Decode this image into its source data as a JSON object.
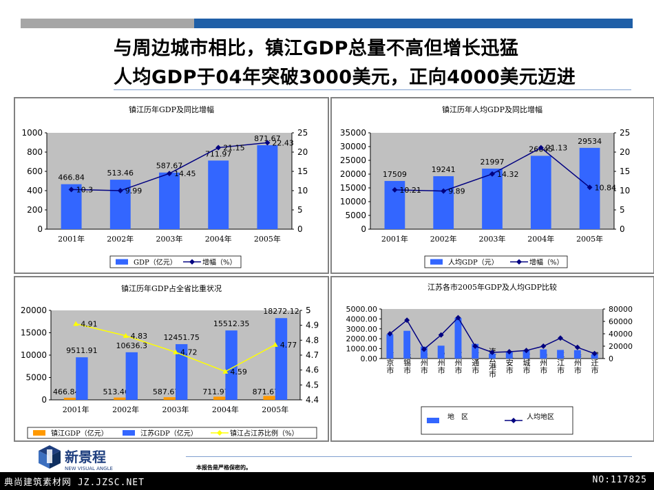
{
  "slide": {
    "title_line1": "与周边城市相比，镇江GDP总量不高但增长迅猛",
    "title_line2": "人均GDP于04年突破3000美元，正向4000美元迈进",
    "confidential": "本报告是严格保密的。",
    "logo_text": "新景程",
    "logo_subtext": "NEW VISUAL ANGLE",
    "watermark_left": "典尚建筑素材网 JZ.JZSC.NET",
    "watermark_right": "NO:117825",
    "colors": {
      "bar_blue": "#3366ff",
      "bar_orange": "#ff9900",
      "line_navy": "#000080",
      "line_yellow": "#ffff00",
      "plot_bg": "#c0c0c0"
    }
  },
  "chart_data": [
    {
      "type": "bar",
      "title": "镇江历年GDP及同比增幅",
      "categories": [
        "2001年",
        "2002年",
        "2003年",
        "2004年",
        "2005年"
      ],
      "series": [
        {
          "name": "GDP（亿元）",
          "kind": "bar",
          "axis": "left",
          "values": [
            466.84,
            513.46,
            587.67,
            711.97,
            871.67
          ],
          "labels": [
            "466.84",
            "513.46",
            "587.67",
            "711.97",
            "871.67"
          ]
        },
        {
          "name": "增幅（%）",
          "kind": "line",
          "axis": "right",
          "values": [
            10.3,
            9.99,
            14.45,
            21.15,
            22.43
          ],
          "labels": [
            "10.3",
            "9.99",
            "14.45",
            "21.15",
            "22.43"
          ]
        }
      ],
      "ylim": [
        0,
        1000
      ],
      "yticks": [
        "1000",
        "800",
        "600",
        "400",
        "200",
        "0"
      ],
      "y2lim": [
        0,
        25
      ],
      "y2ticks": [
        "25",
        "20",
        "15",
        "10",
        "5",
        "0"
      ],
      "legend": "bottom"
    },
    {
      "type": "bar",
      "title": "镇江历年人均GDP及同比增幅",
      "categories": [
        "2001年",
        "2002年",
        "2003年",
        "2004年",
        "2005年"
      ],
      "series": [
        {
          "name": "人均GDP（元）",
          "kind": "bar",
          "axis": "left",
          "values": [
            17509,
            19241,
            21997,
            26645,
            29534
          ],
          "labels": [
            "17509",
            "19241",
            "21997",
            "26645",
            "29534"
          ]
        },
        {
          "name": "增幅（%）",
          "kind": "line",
          "axis": "right",
          "values": [
            10.21,
            9.89,
            14.32,
            21.13,
            10.84
          ],
          "labels": [
            "10.21",
            "9.89",
            "14.32",
            "21.13",
            "10.84"
          ]
        }
      ],
      "ylim": [
        0,
        35000
      ],
      "yticks": [
        "35000",
        "30000",
        "25000",
        "20000",
        "15000",
        "10000",
        "5000",
        "0"
      ],
      "y2lim": [
        0,
        25
      ],
      "y2ticks": [
        "25",
        "20",
        "15",
        "10",
        "5",
        "0"
      ],
      "legend": "bottom"
    },
    {
      "type": "bar",
      "title": "镇江历年GDP占全省比重状况",
      "categories": [
        "2001年",
        "2002年",
        "2003年",
        "2004年",
        "2005年"
      ],
      "series": [
        {
          "name": "镇江GDP（亿元）",
          "kind": "bar",
          "axis": "left",
          "values": [
            466.84,
            513.46,
            587.67,
            711.97,
            871.67
          ],
          "labels": [
            "466.84",
            "513.46",
            "587.67",
            "711.97",
            "871.67"
          ]
        },
        {
          "name": "江苏GDP（亿元）",
          "kind": "bar",
          "axis": "left",
          "values": [
            9511.91,
            10636.3,
            12451.75,
            15512.35,
            18272.12
          ],
          "labels": [
            "9511.91",
            "10636.3",
            "12451.75",
            "15512.35",
            "18272.12"
          ]
        },
        {
          "name": "镇江占江苏比例（%）",
          "kind": "line",
          "axis": "right",
          "values": [
            4.91,
            4.83,
            4.72,
            4.59,
            4.77
          ],
          "labels": [
            "4.91",
            "4.83",
            "4.72",
            "4.59",
            "4.77"
          ]
        }
      ],
      "ylim": [
        0,
        20000
      ],
      "yticks": [
        "20000",
        "15000",
        "10000",
        "5000",
        "0"
      ],
      "y2lim": [
        4.4,
        5
      ],
      "y2ticks": [
        "5",
        "4.9",
        "4.8",
        "4.7",
        "4.6",
        "4.5",
        "4.4"
      ],
      "legend": "bottom"
    },
    {
      "type": "bar",
      "title": "江苏各市2005年GDP及人均GDP比较",
      "categories": [
        "南京市",
        "无锡市",
        "徐州市",
        "常州市",
        "苏州市",
        "南通市",
        "连云港市",
        "淮安市",
        "盐城市",
        "扬州市",
        "镇江市",
        "泰州市",
        "宿迁市"
      ],
      "series": [
        {
          "name": "地　区生产总值(亿元)",
          "kind": "bar",
          "axis": "left",
          "values": [
            2450,
            2800,
            1200,
            1300,
            4100,
            1480,
            500,
            650,
            850,
            930,
            870,
            850,
            420
          ]
        },
        {
          "name": "人均地区生产总值（元）",
          "kind": "line",
          "axis": "right",
          "values": [
            40000,
            62000,
            15000,
            38000,
            66000,
            20000,
            10000,
            11000,
            13000,
            20000,
            33000,
            18000,
            8000
          ]
        }
      ],
      "ylim": [
        0,
        5000
      ],
      "yticks": [
        "5000.00",
        "4000.00",
        "3000.00",
        "2000.00",
        "1000.00",
        "0.00"
      ],
      "y2lim": [
        0,
        80000
      ],
      "y2ticks": [
        "80000",
        "60000",
        "40000",
        "20000",
        "0"
      ],
      "legend": "bottom"
    }
  ]
}
